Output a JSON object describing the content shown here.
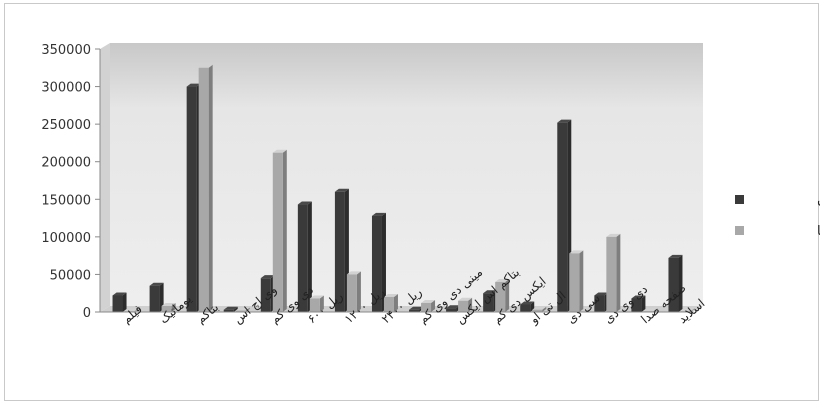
{
  "chart_data": {
    "type": "bar",
    "categories": [
      "فیلم",
      "یوماتیک",
      "بتاکم",
      "وی اچ اس",
      "دی وی کم",
      "ریل ۶۰۰",
      "ریل ۱۲۰۰",
      "ریل ۲۴۰۰",
      "مینی دی وی کم",
      "بتاکم اس ایکس",
      "ایکس دی کم",
      "ال تی او",
      "سی دی",
      "دی وی دی",
      "صفحه صدا",
      "اسلاید"
    ],
    "series": [
      {
        "name": "تهران",
        "color": "#3a3a3a",
        "values": [
          22000,
          35000,
          300000,
          3000,
          45000,
          143000,
          160000,
          128000,
          3000,
          5000,
          25000,
          10000,
          252000,
          22000,
          18000,
          72000
        ]
      },
      {
        "name": "سایر استان‌ها",
        "color": "#a8a8a8",
        "values": [
          1000,
          8000,
          325000,
          2000,
          212000,
          18000,
          50000,
          20000,
          12000,
          15000,
          40000,
          3000,
          78000,
          100000,
          1000,
          1000
        ]
      }
    ],
    "ylim": [
      0,
      350000
    ],
    "yticks": [
      "0",
      "50000",
      "100000",
      "150000",
      "200000",
      "250000",
      "300000",
      "350000"
    ],
    "legend_position": "right",
    "grid": false,
    "style": "3d-clustered-column"
  }
}
